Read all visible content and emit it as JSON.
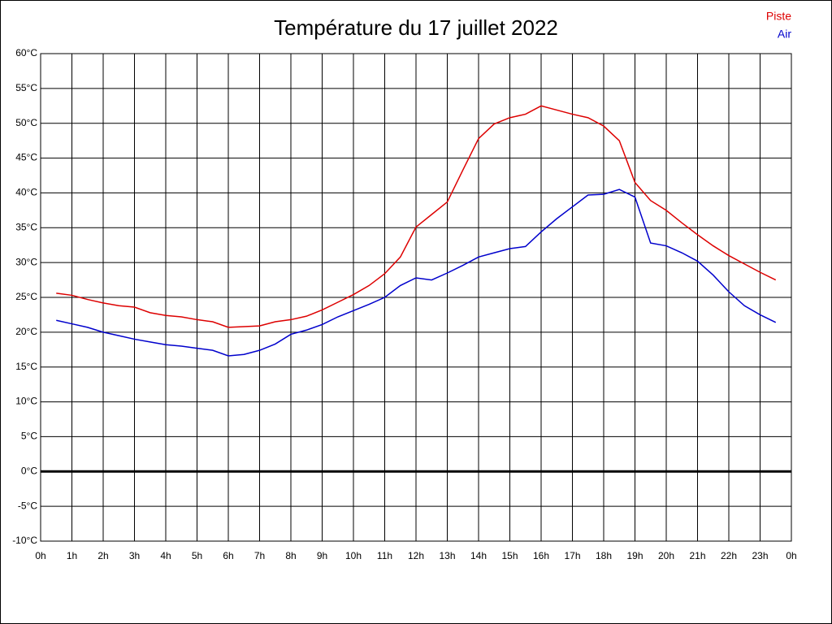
{
  "chart_data": {
    "type": "line",
    "title": "Température du 17 juillet 2022",
    "x": [
      0.5,
      1,
      1.5,
      2,
      2.5,
      3,
      3.5,
      4,
      4.5,
      5,
      5.5,
      6,
      6.5,
      7,
      7.5,
      8,
      8.5,
      9,
      9.5,
      10,
      10.5,
      11,
      11.5,
      12,
      12.5,
      13,
      13.5,
      14,
      14.5,
      15,
      15.5,
      16,
      16.5,
      17,
      17.5,
      18,
      18.5,
      19,
      19.5,
      20,
      20.5,
      21,
      21.5,
      22,
      22.5,
      23,
      23.5
    ],
    "series": [
      {
        "name": "Piste",
        "color": "#dd0000",
        "values": [
          25.6,
          25.3,
          24.7,
          24.2,
          23.8,
          23.6,
          22.8,
          22.4,
          22.2,
          21.8,
          21.5,
          20.7,
          20.8,
          20.9,
          21.5,
          21.8,
          22.3,
          23.2,
          24.3,
          25.4,
          26.7,
          28.4,
          30.8,
          35.1,
          36.9,
          38.7,
          43.3,
          47.8,
          49.9,
          50.8,
          51.3,
          52.5,
          51.9,
          51.3,
          50.8,
          49.6,
          47.5,
          41.5,
          38.9,
          37.5,
          35.7,
          34.0,
          32.4,
          31.0,
          29.8,
          28.6,
          27.5
        ]
      },
      {
        "name": "Air",
        "color": "#0000cc",
        "values": [
          21.7,
          21.2,
          20.7,
          20.0,
          19.5,
          19.0,
          18.6,
          18.2,
          18.0,
          17.7,
          17.4,
          16.6,
          16.8,
          17.4,
          18.3,
          19.7,
          20.3,
          21.1,
          22.2,
          23.1,
          24.0,
          25.0,
          26.7,
          27.8,
          27.5,
          28.5,
          29.6,
          30.8,
          31.4,
          32.0,
          32.3,
          34.4,
          36.3,
          38.0,
          39.7,
          39.8,
          40.5,
          39.4,
          32.8,
          32.4,
          31.4,
          30.2,
          28.2,
          25.8,
          23.8,
          22.5,
          21.4
        ]
      }
    ],
    "xlim": [
      0,
      24
    ],
    "xticks": [
      {
        "value": 0,
        "label": "0h"
      },
      {
        "value": 1,
        "label": "1h"
      },
      {
        "value": 2,
        "label": "2h"
      },
      {
        "value": 3,
        "label": "3h"
      },
      {
        "value": 4,
        "label": "4h"
      },
      {
        "value": 5,
        "label": "5h"
      },
      {
        "value": 6,
        "label": "6h"
      },
      {
        "value": 7,
        "label": "7h"
      },
      {
        "value": 8,
        "label": "8h"
      },
      {
        "value": 9,
        "label": "9h"
      },
      {
        "value": 10,
        "label": "10h"
      },
      {
        "value": 11,
        "label": "11h"
      },
      {
        "value": 12,
        "label": "12h"
      },
      {
        "value": 13,
        "label": "13h"
      },
      {
        "value": 14,
        "label": "14h"
      },
      {
        "value": 15,
        "label": "15h"
      },
      {
        "value": 16,
        "label": "16h"
      },
      {
        "value": 17,
        "label": "17h"
      },
      {
        "value": 18,
        "label": "18h"
      },
      {
        "value": 19,
        "label": "19h"
      },
      {
        "value": 20,
        "label": "20h"
      },
      {
        "value": 21,
        "label": "21h"
      },
      {
        "value": 22,
        "label": "22h"
      },
      {
        "value": 23,
        "label": "23h"
      },
      {
        "value": 24,
        "label": "0h"
      }
    ],
    "ylim": [
      -10,
      60
    ],
    "yticks": [
      {
        "value": -10,
        "label": "-10°C"
      },
      {
        "value": -5,
        "label": "-5°C"
      },
      {
        "value": 0,
        "label": "0°C"
      },
      {
        "value": 5,
        "label": "5°C"
      },
      {
        "value": 10,
        "label": "10°C"
      },
      {
        "value": 15,
        "label": "15°C"
      },
      {
        "value": 20,
        "label": "20°C"
      },
      {
        "value": 25,
        "label": "25°C"
      },
      {
        "value": 30,
        "label": "30°C"
      },
      {
        "value": 35,
        "label": "35°C"
      },
      {
        "value": 40,
        "label": "40°C"
      },
      {
        "value": 45,
        "label": "45°C"
      },
      {
        "value": 50,
        "label": "50°C"
      },
      {
        "value": 55,
        "label": "55°C"
      },
      {
        "value": 60,
        "label": "60°C"
      }
    ],
    "grid": true,
    "legend": "top-right"
  }
}
